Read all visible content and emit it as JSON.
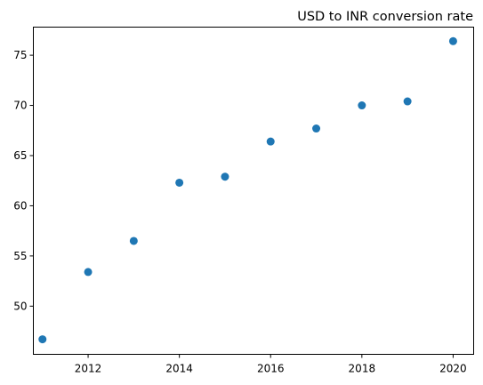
{
  "chart_data": {
    "type": "scatter",
    "title": "USD to INR conversion rate",
    "xlabel": "",
    "ylabel": "",
    "x": [
      2011,
      2012,
      2013,
      2014,
      2015,
      2016,
      2017,
      2018,
      2019,
      2020
    ],
    "y": [
      46.7,
      53.4,
      56.5,
      62.3,
      62.9,
      66.4,
      67.7,
      70.0,
      70.4,
      76.4
    ],
    "xlim": [
      2010.8,
      2020.45
    ],
    "ylim": [
      45.2,
      77.8
    ],
    "xticks": [
      "2012",
      "2014",
      "2016",
      "2018",
      "2020"
    ],
    "yticks": [
      "50",
      "55",
      "60",
      "65",
      "70",
      "75"
    ],
    "marker_color": "#1f77b4",
    "grid": false,
    "legend": false
  }
}
